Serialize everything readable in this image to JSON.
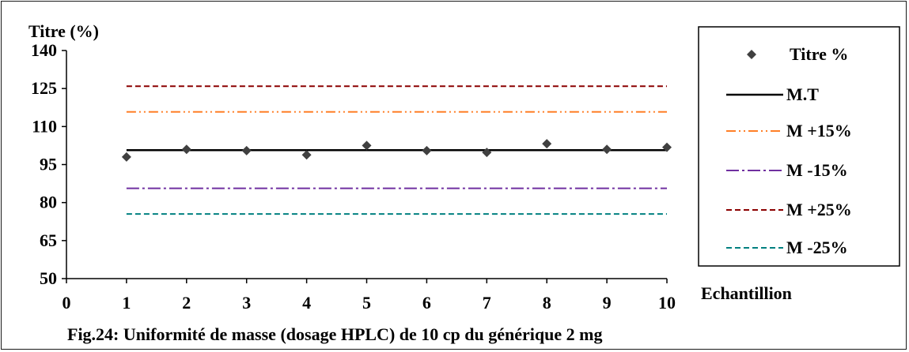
{
  "chart_data": {
    "type": "scatter",
    "caption": "Fig.24: Uniformité de masse (dosage HPLC) de 10 cp du générique 2 mg",
    "ylabel": "Titre (%)",
    "xlabel": "Echantillion",
    "ylim": [
      50,
      140
    ],
    "xlim": [
      0,
      10
    ],
    "y_ticks": [
      50,
      65,
      80,
      95,
      110,
      125,
      140
    ],
    "x_ticks": [
      0,
      1,
      2,
      3,
      4,
      5,
      6,
      7,
      8,
      9,
      10
    ],
    "grid": false,
    "legend_position": "right",
    "points": {
      "name": "Titre %",
      "x": [
        1,
        2,
        3,
        4,
        5,
        6,
        7,
        8,
        9,
        10
      ],
      "y": [
        98.0,
        101.0,
        100.5,
        98.8,
        102.5,
        100.5,
        99.8,
        103.2,
        101.0,
        101.8
      ],
      "color": "#404040"
    },
    "lines": [
      {
        "name": "M.T",
        "y": 100.7,
        "x_range": [
          1,
          10
        ],
        "color": "#000000",
        "dash": "solid"
      },
      {
        "name": "M +15%",
        "y": 115.8,
        "x_range": [
          1,
          10
        ],
        "color": "#ff7f27",
        "dash": "dashdotdot"
      },
      {
        "name": "M -15%",
        "y": 85.6,
        "x_range": [
          1,
          10
        ],
        "color": "#7030a0",
        "dash": "longdashdot"
      },
      {
        "name": "M +25%",
        "y": 125.9,
        "x_range": [
          1,
          10
        ],
        "color": "#8b0000",
        "dash": "dash"
      },
      {
        "name": "M -25%",
        "y": 75.5,
        "x_range": [
          1,
          10
        ],
        "color": "#008080",
        "dash": "dash"
      }
    ]
  }
}
